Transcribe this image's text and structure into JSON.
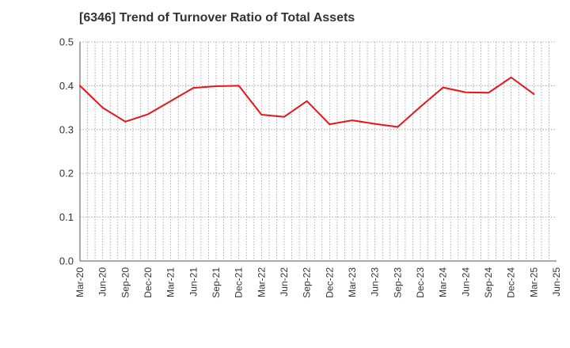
{
  "chart_data": {
    "type": "line",
    "title": "[6346]  Trend of Turnover Ratio of Total Assets",
    "xlabel": "",
    "ylabel": "",
    "ylim": [
      0,
      0.5
    ],
    "yticks": [
      "0.0",
      "0.1",
      "0.2",
      "0.3",
      "0.4",
      "0.5"
    ],
    "categories": [
      "Mar-20",
      "Jun-20",
      "Sep-20",
      "Dec-20",
      "Mar-21",
      "Jun-21",
      "Sep-21",
      "Dec-21",
      "Mar-22",
      "Jun-22",
      "Sep-22",
      "Dec-22",
      "Mar-23",
      "Jun-23",
      "Sep-23",
      "Dec-23",
      "Mar-24",
      "Jun-24",
      "Sep-24",
      "Dec-24",
      "Mar-25",
      "Jun-25"
    ],
    "grid": true,
    "legend": "none",
    "series": [
      {
        "color": "#e8141b",
        "values": [
          0.4,
          0.35,
          0.318,
          0.335,
          0.365,
          0.395,
          0.399,
          0.4,
          0.334,
          0.329,
          0.365,
          0.312,
          0.321,
          0.313,
          0.306,
          0.352,
          0.396,
          0.385,
          0.384,
          0.419,
          0.381,
          null
        ]
      }
    ]
  }
}
